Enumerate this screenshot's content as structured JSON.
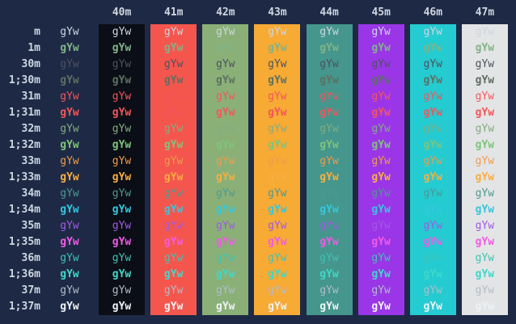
{
  "terminal": {
    "description": "ANSI color test chart output (gYw pattern)",
    "background": "#1e2a45",
    "default_fg": "#cfd6e0",
    "cell_text": "gYw",
    "columns": [
      {
        "label": "40m",
        "bg": "#0b0e16"
      },
      {
        "label": "41m",
        "bg": "#f4564d"
      },
      {
        "label": "42m",
        "bg": "#8ab077"
      },
      {
        "label": "43m",
        "bg": "#f7aa34"
      },
      {
        "label": "44m",
        "bg": "#45968c"
      },
      {
        "label": "45m",
        "bg": "#9a36e8"
      },
      {
        "label": "46m",
        "bg": "#24cbd1"
      },
      {
        "label": "47m",
        "bg": "#e3e4e5"
      }
    ],
    "rows": [
      {
        "label": "m",
        "fg": "#cfd6e0",
        "bold": false
      },
      {
        "label": "1m",
        "fg": "#80b487",
        "bold": true
      },
      {
        "label": "30m",
        "fg": "#4c525c",
        "bold": false
      },
      {
        "label": "1;30m",
        "fg": "#5e7061",
        "bold": true
      },
      {
        "label": "31m",
        "fg": "#f4555b",
        "bold": false
      },
      {
        "label": "1;31m",
        "fg": "#f4555b",
        "bold": true
      },
      {
        "label": "32m",
        "fg": "#83ad82",
        "bold": false
      },
      {
        "label": "1;32m",
        "fg": "#7ec47b",
        "bold": true
      },
      {
        "label": "33m",
        "fg": "#ef9c4b",
        "bold": false
      },
      {
        "label": "1;33m",
        "fg": "#f8ae41",
        "bold": true
      },
      {
        "label": "34m",
        "fg": "#4d9a90",
        "bold": false
      },
      {
        "label": "1;34m",
        "fg": "#36c6dd",
        "bold": true
      },
      {
        "label": "35m",
        "fg": "#a159e5",
        "bold": false
      },
      {
        "label": "1;35m",
        "fg": "#f25ae6",
        "bold": true
      },
      {
        "label": "36m",
        "fg": "#3fc3b4",
        "bold": false
      },
      {
        "label": "1;36m",
        "fg": "#41d7c9",
        "bold": true
      },
      {
        "label": "37m",
        "fg": "#b2bcc8",
        "bold": false
      },
      {
        "label": "1;37m",
        "fg": "#eef2f6",
        "bold": true
      }
    ]
  }
}
